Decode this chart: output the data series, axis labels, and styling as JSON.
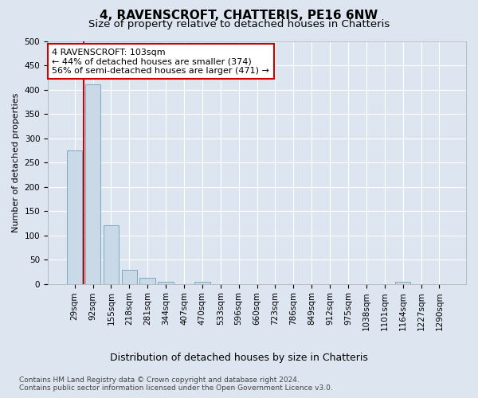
{
  "title1": "4, RAVENSCROFT, CHATTERIS, PE16 6NW",
  "title2": "Size of property relative to detached houses in Chatteris",
  "xlabel": "Distribution of detached houses by size in Chatteris",
  "ylabel": "Number of detached properties",
  "categories": [
    "29sqm",
    "92sqm",
    "155sqm",
    "218sqm",
    "281sqm",
    "344sqm",
    "407sqm",
    "470sqm",
    "533sqm",
    "596sqm",
    "660sqm",
    "723sqm",
    "786sqm",
    "849sqm",
    "912sqm",
    "975sqm",
    "1038sqm",
    "1101sqm",
    "1164sqm",
    "1227sqm",
    "1290sqm"
  ],
  "values": [
    275,
    410,
    120,
    28,
    13,
    4,
    0,
    4,
    0,
    0,
    0,
    0,
    0,
    0,
    0,
    0,
    0,
    0,
    4,
    0,
    0
  ],
  "bar_color": "#c9d9e8",
  "bar_edge_color": "#7aaabf",
  "highlight_line_color": "#cc0000",
  "annotation_text": "4 RAVENSCROFT: 103sqm\n← 44% of detached houses are smaller (374)\n56% of semi-detached houses are larger (471) →",
  "annotation_box_color": "#ffffff",
  "annotation_box_edge": "#cc0000",
  "ylim": [
    0,
    500
  ],
  "yticks": [
    0,
    50,
    100,
    150,
    200,
    250,
    300,
    350,
    400,
    450,
    500
  ],
  "footer1": "Contains HM Land Registry data © Crown copyright and database right 2024.",
  "footer2": "Contains public sector information licensed under the Open Government Licence v3.0.",
  "bg_color": "#dde6f0",
  "plot_bg_color": "#dde6f0",
  "grid_color": "#ffffff",
  "title1_fontsize": 11,
  "title2_fontsize": 9.5,
  "xlabel_fontsize": 9,
  "ylabel_fontsize": 8,
  "tick_fontsize": 7.5,
  "annotation_fontsize": 8,
  "footer_fontsize": 6.5
}
